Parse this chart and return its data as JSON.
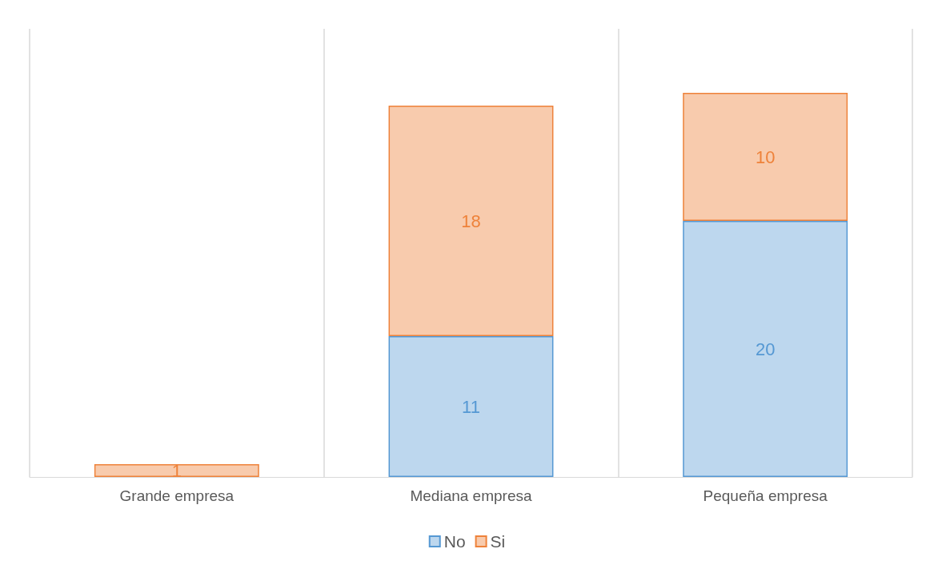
{
  "chart_data": {
    "type": "bar",
    "stacked": true,
    "categories": [
      "Grande empresa",
      "Mediana empresa",
      "Pequeña empresa"
    ],
    "series": [
      {
        "name": "No",
        "color": "#bdd7ee",
        "values": [
          null,
          11,
          20
        ]
      },
      {
        "name": "Si",
        "color": "#f8cbad",
        "values": [
          1,
          18,
          10
        ]
      }
    ],
    "ylim": [
      0,
      35
    ],
    "tick_labels": "x",
    "data_labels": true,
    "grid": "x",
    "legend": "bottom"
  }
}
